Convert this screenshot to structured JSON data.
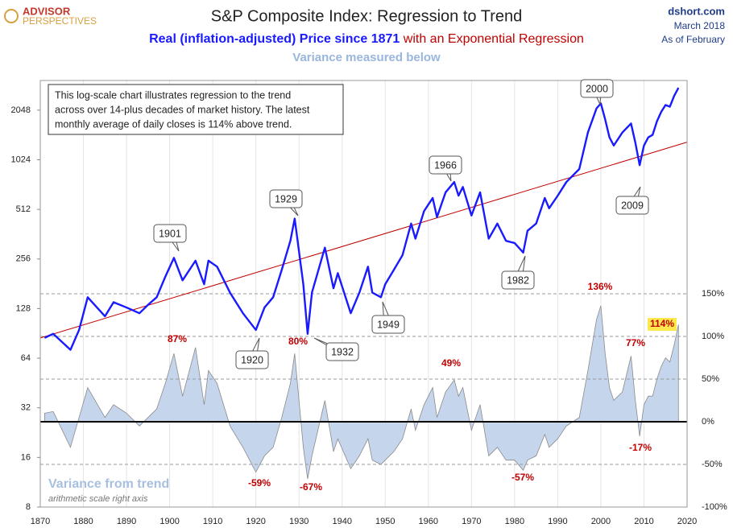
{
  "chart_data": {
    "type": "log-regression",
    "logo": [
      "ADVISOR",
      "PERSPECTIVES"
    ],
    "title": "S&P Composite Index: Regression to Trend",
    "subtitle": [
      "Real (inflation-adjusted) Price since 1871",
      "with an Exponential Regression"
    ],
    "subtitle2": "Variance measured below",
    "source": [
      "dshort.com",
      "March 2018",
      "As of February"
    ],
    "note": [
      "This log-scale chart illustrates regression to the trend",
      "across over 14-plus decades of market history. The latest",
      "monthly average of daily closes is 114% above trend."
    ],
    "variance_title": "Variance from trend",
    "variance_subtitle": "arithmetic scale right axis",
    "callouts": [
      "1901",
      "1920",
      "1929",
      "1932",
      "1949",
      "1966",
      "1982",
      "2000",
      "2009"
    ],
    "variance_labels": [
      "87%",
      "-59%",
      "80%",
      "-67%",
      "49%",
      "-57%",
      "136%",
      "77%",
      "-17%",
      "114%"
    ],
    "xlim": [
      1870,
      2020
    ],
    "xticks": [
      1870,
      1880,
      1890,
      1900,
      1910,
      1920,
      1930,
      1940,
      1950,
      1960,
      1970,
      1980,
      1990,
      2000,
      2010,
      2020
    ],
    "ylim": [
      8,
      3100
    ],
    "yticks": [
      8,
      16,
      32,
      64,
      128,
      256,
      512,
      1024,
      2048
    ],
    "log_y": true,
    "y2lim": [
      -100,
      400
    ],
    "y2ticks": [
      {
        "value": -100,
        "label": "-100%"
      },
      {
        "value": -50,
        "label": "-50%"
      },
      {
        "value": 0,
        "label": "0%"
      },
      {
        "value": 50,
        "label": "50%"
      },
      {
        "value": 100,
        "label": "100%"
      },
      {
        "value": 150,
        "label": "150%"
      }
    ],
    "series": [
      {
        "name": "Real Price",
        "color": "#1a1aff",
        "x": [
          1871,
          1873,
          1877,
          1879,
          1881,
          1885,
          1887,
          1890,
          1893,
          1895,
          1897,
          1899,
          1901,
          1903,
          1906,
          1908,
          1909,
          1911,
          1914,
          1917,
          1920,
          1922,
          1924,
          1926,
          1928,
          1929,
          1931,
          1932,
          1933,
          1936,
          1938,
          1939,
          1942,
          1944,
          1946,
          1947,
          1949,
          1950,
          1952,
          1954,
          1956,
          1957,
          1959,
          1961,
          1962,
          1964,
          1966,
          1967,
          1968,
          1970,
          1972,
          1974,
          1976,
          1978,
          1980,
          1982,
          1983,
          1985,
          1987,
          1988,
          1990,
          1992,
          1995,
          1997,
          1999,
          2000,
          2001,
          2002,
          2003,
          2005,
          2007,
          2008,
          2009,
          2010,
          2011,
          2012,
          2013,
          2014,
          2015,
          2016,
          2017,
          2018
        ],
        "values": [
          85,
          90,
          72,
          95,
          150,
          115,
          140,
          130,
          120,
          135,
          150,
          200,
          260,
          190,
          250,
          180,
          250,
          230,
          160,
          120,
          95,
          130,
          150,
          220,
          330,
          450,
          180,
          90,
          160,
          300,
          170,
          210,
          120,
          160,
          230,
          160,
          150,
          180,
          220,
          270,
          420,
          340,
          500,
          600,
          460,
          650,
          750,
          620,
          700,
          470,
          650,
          340,
          420,
          330,
          320,
          280,
          380,
          420,
          600,
          520,
          620,
          750,
          900,
          1500,
          2100,
          2250,
          1800,
          1400,
          1250,
          1500,
          1700,
          1300,
          950,
          1250,
          1400,
          1450,
          1750,
          2000,
          2200,
          2150,
          2500,
          2800
        ]
      },
      {
        "name": "Exponential Regression",
        "color": "#c00000",
        "x": [
          1870,
          2020
        ],
        "values": [
          85,
          1310
        ]
      },
      {
        "name": "Variance",
        "color": "#c5d5ec",
        "axis": "y2",
        "x": [
          1871,
          1873,
          1877,
          1879,
          1881,
          1885,
          1887,
          1890,
          1893,
          1895,
          1897,
          1899,
          1901,
          1903,
          1906,
          1908,
          1909,
          1911,
          1914,
          1917,
          1920,
          1922,
          1924,
          1926,
          1928,
          1929,
          1931,
          1932,
          1933,
          1936,
          1938,
          1939,
          1942,
          1944,
          1946,
          1947,
          1949,
          1950,
          1952,
          1954,
          1956,
          1957,
          1959,
          1961,
          1962,
          1964,
          1966,
          1967,
          1968,
          1970,
          1972,
          1974,
          1976,
          1978,
          1980,
          1982,
          1983,
          1985,
          1987,
          1988,
          1990,
          1992,
          1995,
          1997,
          1999,
          2000,
          2001,
          2002,
          2003,
          2005,
          2007,
          2008,
          2009,
          2010,
          2011,
          2012,
          2013,
          2014,
          2015,
          2016,
          2017,
          2018
        ],
        "values": [
          10,
          12,
          -30,
          5,
          40,
          5,
          20,
          10,
          -5,
          5,
          15,
          45,
          80,
          30,
          87,
          20,
          60,
          45,
          -5,
          -30,
          -59,
          -40,
          -30,
          5,
          45,
          80,
          -30,
          -67,
          -40,
          25,
          -35,
          -20,
          -55,
          -40,
          -20,
          -45,
          -50,
          -45,
          -35,
          -20,
          15,
          -10,
          20,
          40,
          5,
          35,
          49,
          30,
          40,
          -10,
          20,
          -40,
          -30,
          -45,
          -45,
          -57,
          -45,
          -40,
          -15,
          -30,
          -20,
          -5,
          5,
          60,
          120,
          136,
          80,
          40,
          25,
          35,
          77,
          25,
          -17,
          20,
          30,
          30,
          50,
          65,
          75,
          70,
          90,
          114
        ]
      }
    ]
  }
}
